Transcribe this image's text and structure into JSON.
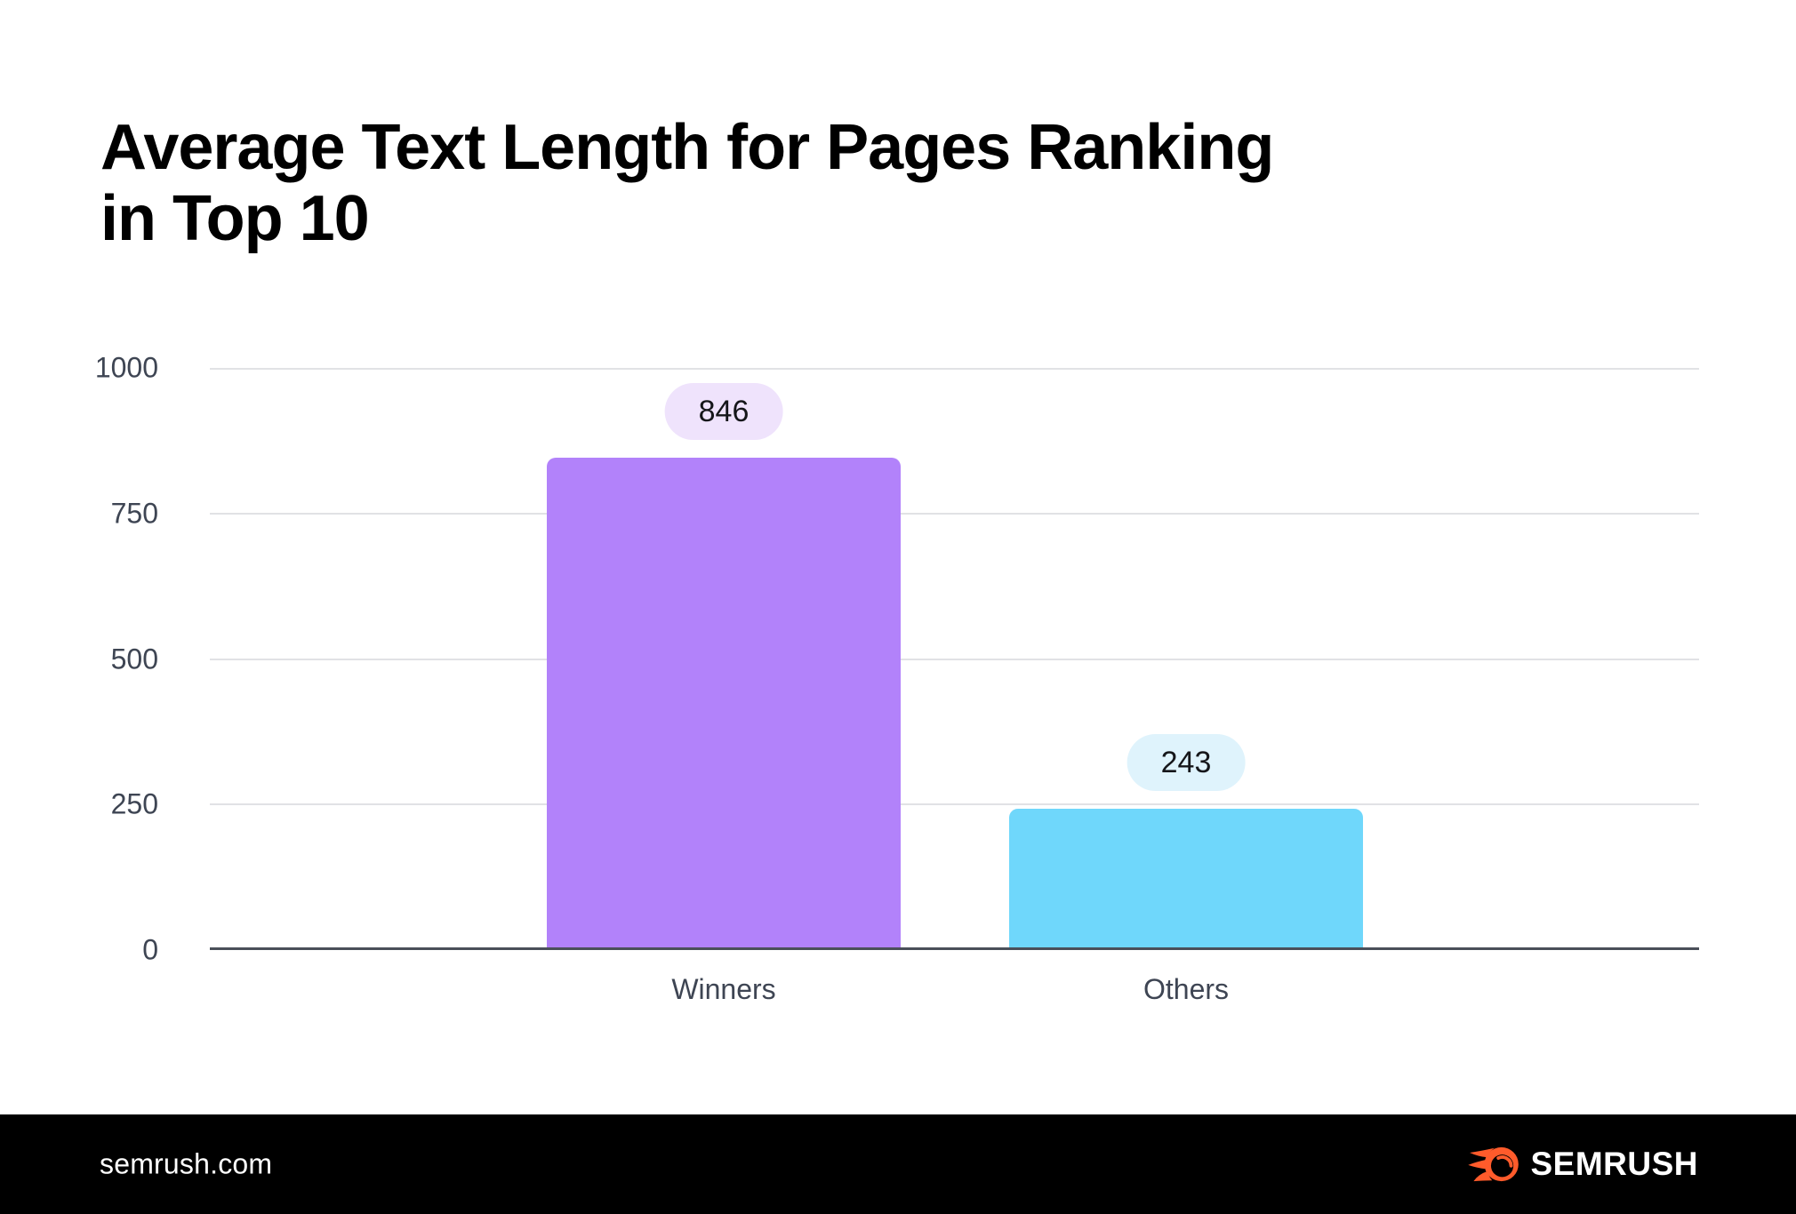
{
  "page": {
    "title_line1": "Average Text Length for Pages Ranking",
    "title_line2": "in Top 10"
  },
  "chart_data": {
    "type": "bar",
    "title": "Average Text Length for Pages Ranking in Top 10",
    "categories": [
      "Winners",
      "Others"
    ],
    "values": [
      846,
      243
    ],
    "value_labels": [
      "846",
      "243"
    ],
    "bar_colors": [
      "#b282fa",
      "#6fd7fb"
    ],
    "badge_colors": [
      "#efe3fc",
      "#dff3fc"
    ],
    "xlabel": "",
    "ylabel": "",
    "ylim": [
      0,
      1000
    ],
    "yticks": [
      1000,
      750,
      500,
      250,
      0
    ],
    "ytick_labels": [
      "1000",
      "750",
      "500",
      "250",
      "0"
    ],
    "grid": "horizontal",
    "legend": "none",
    "colors": {
      "gridline": "#e1e2e5",
      "baseline": "#4a4f59",
      "axis_text": "#3e4553",
      "title_text": "#000000"
    }
  },
  "footer": {
    "site": "semrush.com",
    "brand": "SEMRUSH",
    "brand_color": "#ff5b2b",
    "background": "#000000"
  }
}
